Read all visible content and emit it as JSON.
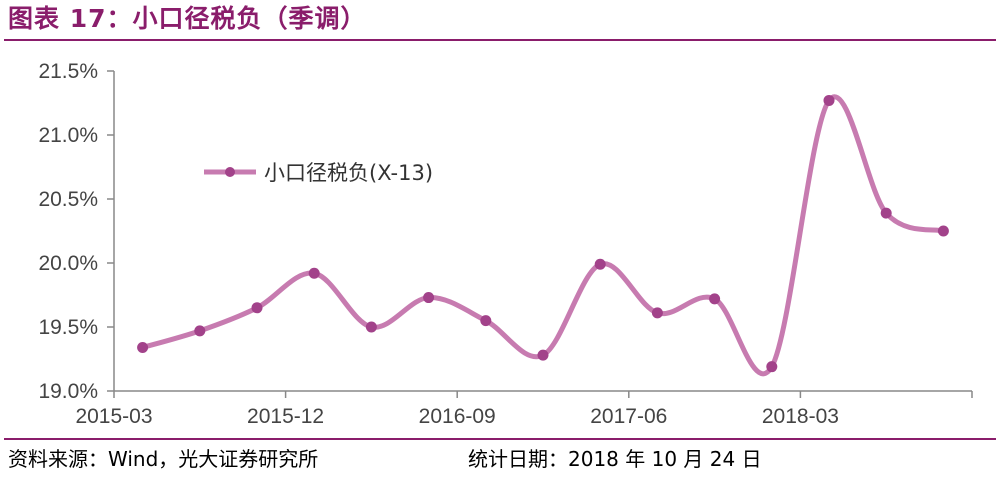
{
  "title": "图表 17：小口径税负（季调）",
  "footer": {
    "source": "资料来源：Wind，光大证券研究所",
    "date": "统计日期：2018 年 10 月 24 日"
  },
  "chart_data": {
    "type": "line",
    "smooth": true,
    "series": [
      {
        "name": "小口径税负(X-13)",
        "color": "#c77bb0",
        "marker_color": "#a2428a",
        "values": [
          19.34,
          19.47,
          19.65,
          19.92,
          19.5,
          19.73,
          19.55,
          19.28,
          19.99,
          19.61,
          19.72,
          19.19,
          21.27,
          20.39,
          20.25
        ]
      }
    ],
    "x": [
      "2015-03",
      "2015-06",
      "2015-09",
      "2015-12",
      "2016-03",
      "2016-06",
      "2016-09",
      "2016-12",
      "2017-03",
      "2017-06",
      "2017-09",
      "2017-12",
      "2018-03",
      "2018-06",
      "2018-09"
    ],
    "x_tick_labels": [
      "2015-03",
      "2015-12",
      "2016-09",
      "2017-06",
      "2018-03"
    ],
    "y_ticks": [
      "19.0%",
      "19.5%",
      "20.0%",
      "20.5%",
      "21.0%",
      "21.5%"
    ],
    "y_tick_values": [
      19.0,
      19.5,
      20.0,
      20.5,
      21.0,
      21.5
    ],
    "ylim": [
      19.0,
      21.5
    ],
    "legend_position": "upper-left",
    "grid": false
  }
}
